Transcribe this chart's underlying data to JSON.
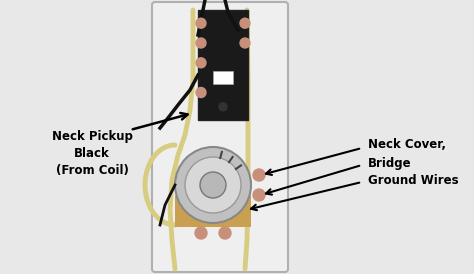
{
  "bg_color": "#e8e8e8",
  "plate_color": "#efefef",
  "plate_border": "#b0b0b0",
  "connector_color": "#c8907a",
  "wire_yellow": "#d8cc80",
  "wire_black": "#111111",
  "label1_text": "Neck Pickup\nBlack\n(From Coil)",
  "label2_line1": "Neck Cover,",
  "label2_line2": "Bridge",
  "label2_line3": "Ground Wires"
}
